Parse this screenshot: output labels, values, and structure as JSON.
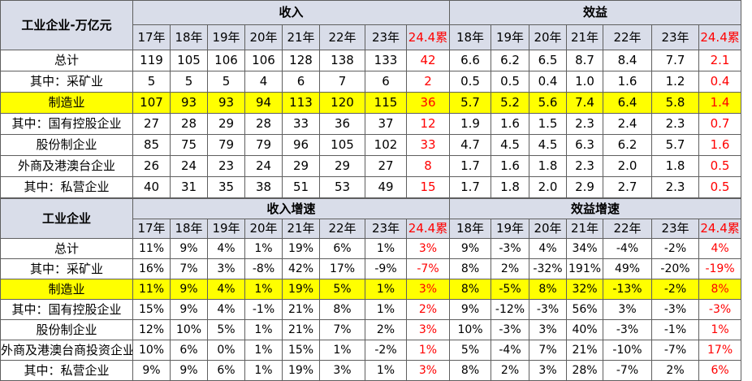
{
  "top": {
    "corner": "工业企业-万亿元",
    "revenue_header": "收入",
    "profit_header": "效益",
    "revenue_years": [
      "17年",
      "18年",
      "19年",
      "20年",
      "21年",
      "22年",
      "23年",
      "24.4累"
    ],
    "profit_years": [
      "18年",
      "19年",
      "20年",
      "21年",
      "22年",
      "23年",
      "24.4累"
    ],
    "rows": [
      {
        "label": "总计",
        "align": "c",
        "highlight": false,
        "revenue": [
          "119",
          "105",
          "106",
          "106",
          "128",
          "138",
          "133",
          "42"
        ],
        "profit": [
          "6.6",
          "6.2",
          "6.5",
          "8.7",
          "8.4",
          "7.7",
          "2.1"
        ]
      },
      {
        "label": "其中：采矿业",
        "align": "r",
        "highlight": false,
        "revenue": [
          "5",
          "5",
          "5",
          "4",
          "6",
          "7",
          "6",
          "2"
        ],
        "profit": [
          "0.5",
          "0.5",
          "0.4",
          "1.0",
          "1.6",
          "1.2",
          "0.4"
        ]
      },
      {
        "label": "制造业",
        "align": "r",
        "highlight": true,
        "revenue": [
          "107",
          "93",
          "93",
          "94",
          "113",
          "120",
          "115",
          "36"
        ],
        "profit": [
          "5.7",
          "5.2",
          "5.6",
          "7.4",
          "6.4",
          "5.8",
          "1.4"
        ]
      },
      {
        "label": "其中：国有控股企业",
        "align": "r",
        "highlight": false,
        "revenue": [
          "27",
          "28",
          "29",
          "28",
          "33",
          "36",
          "37",
          "12"
        ],
        "profit": [
          "1.9",
          "1.6",
          "1.5",
          "2.3",
          "2.4",
          "2.3",
          "0.7"
        ]
      },
      {
        "label": "股份制企业",
        "align": "r",
        "highlight": false,
        "revenue": [
          "85",
          "75",
          "79",
          "79",
          "96",
          "105",
          "102",
          "33"
        ],
        "profit": [
          "4.7",
          "4.5",
          "4.5",
          "6.3",
          "6.2",
          "5.7",
          "1.6"
        ]
      },
      {
        "label": "外商及港澳台企业",
        "align": "r",
        "highlight": false,
        "revenue": [
          "26",
          "24",
          "23",
          "24",
          "29",
          "29",
          "27",
          "8"
        ],
        "profit": [
          "1.7",
          "1.6",
          "1.8",
          "2.3",
          "2.0",
          "1.8",
          "0.5"
        ]
      },
      {
        "label": "其中：私营企业",
        "align": "r",
        "highlight": false,
        "revenue": [
          "40",
          "31",
          "35",
          "38",
          "51",
          "53",
          "49",
          "15"
        ],
        "profit": [
          "1.7",
          "1.8",
          "2.0",
          "2.9",
          "2.7",
          "2.3",
          "0.5"
        ]
      }
    ]
  },
  "bottom": {
    "corner": "工业企业",
    "revenue_header": "收入增速",
    "profit_header": "效益增速",
    "revenue_years": [
      "17年",
      "18年",
      "19年",
      "20年",
      "21年",
      "22年",
      "23年",
      "24.4累"
    ],
    "profit_years": [
      "18年",
      "19年",
      "20年",
      "21年",
      "22年",
      "23年",
      "24.4累"
    ],
    "rows": [
      {
        "label": "总计",
        "align": "c",
        "highlight": false,
        "revenue": [
          "11%",
          "9%",
          "4%",
          "1%",
          "19%",
          "6%",
          "1%",
          "3%"
        ],
        "profit": [
          "9%",
          "-3%",
          "4%",
          "34%",
          "-4%",
          "-2%",
          "4%"
        ]
      },
      {
        "label": "其中：采矿业",
        "align": "r",
        "highlight": false,
        "revenue": [
          "16%",
          "7%",
          "3%",
          "-8%",
          "42%",
          "17%",
          "-9%",
          "-7%"
        ],
        "profit": [
          "8%",
          "2%",
          "-32%",
          "191%",
          "49%",
          "-20%",
          "-19%"
        ]
      },
      {
        "label": "制造业",
        "align": "r",
        "highlight": true,
        "revenue": [
          "11%",
          "9%",
          "4%",
          "1%",
          "19%",
          "5%",
          "1%",
          "3%"
        ],
        "profit": [
          "8%",
          "-5%",
          "8%",
          "32%",
          "-13%",
          "-2%",
          "8%"
        ]
      },
      {
        "label": "其中：国有控股企业",
        "align": "r",
        "highlight": false,
        "revenue": [
          "15%",
          "9%",
          "4%",
          "-1%",
          "21%",
          "8%",
          "1%",
          "2%"
        ],
        "profit": [
          "9%",
          "-12%",
          "-3%",
          "56%",
          "3%",
          "-3%",
          "-3%"
        ]
      },
      {
        "label": "股份制企业",
        "align": "r",
        "highlight": false,
        "revenue": [
          "12%",
          "10%",
          "5%",
          "1%",
          "21%",
          "7%",
          "2%",
          "3%"
        ],
        "profit": [
          "10%",
          "-3%",
          "3%",
          "40%",
          "-3%",
          "-1%",
          "1%"
        ]
      },
      {
        "label": "外商及港澳台商投资企业",
        "align": "r",
        "highlight": false,
        "revenue": [
          "10%",
          "6%",
          "0%",
          "1%",
          "15%",
          "1%",
          "-2%",
          "1%"
        ],
        "profit": [
          "5%",
          "-4%",
          "7%",
          "21%",
          "-10%",
          "-7%",
          "17%"
        ]
      },
      {
        "label": "其中：私营企业",
        "align": "r",
        "highlight": false,
        "revenue": [
          "9%",
          "9%",
          "6%",
          "1%",
          "19%",
          "3%",
          "1%",
          "3%"
        ],
        "profit": [
          "8%",
          "2%",
          "3%",
          "28%",
          "-7%",
          "2%",
          "6%"
        ]
      }
    ]
  }
}
